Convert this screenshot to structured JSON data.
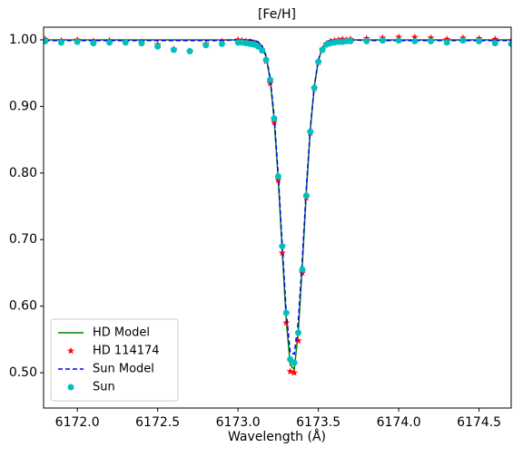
{
  "chart_data": {
    "type": "line",
    "title": "[Fe/H]",
    "x_label": "Wavelength (Å)",
    "x": [
      6171.8,
      6171.9,
      6172.0,
      6172.1,
      6172.2,
      6172.3,
      6172.4,
      6172.5,
      6172.6,
      6172.7,
      6172.8,
      6172.9,
      6173.0,
      6173.025,
      6173.05,
      6173.075,
      6173.1,
      6173.125,
      6173.15,
      6173.175,
      6173.2,
      6173.225,
      6173.25,
      6173.275,
      6173.3,
      6173.325,
      6173.35,
      6173.375,
      6173.4,
      6173.425,
      6173.45,
      6173.475,
      6173.5,
      6173.525,
      6173.55,
      6173.575,
      6173.6,
      6173.625,
      6173.65,
      6173.675,
      6173.7,
      6173.8,
      6173.9,
      6174.0,
      6174.1,
      6174.2,
      6174.3,
      6174.4,
      6174.5,
      6174.6,
      6174.7
    ],
    "series": [
      {
        "name": "HD Model",
        "color": "#008000",
        "linestyle": "solid",
        "values": [
          1.0,
          1.0,
          1.0,
          1.0,
          1.0,
          1.0,
          1.0,
          1.0,
          1.0,
          1.0,
          1.0,
          1.0,
          1.0,
          1.0,
          1.0,
          1.0,
          0.999,
          0.997,
          0.99,
          0.974,
          0.94,
          0.88,
          0.792,
          0.684,
          0.579,
          0.512,
          0.505,
          0.562,
          0.661,
          0.771,
          0.865,
          0.93,
          0.969,
          0.988,
          0.996,
          0.999,
          1.0,
          1.0,
          1.0,
          1.0,
          1.0,
          1.0,
          1.0,
          1.0,
          1.0,
          1.0,
          1.0,
          1.0,
          1.0,
          1.0,
          1.0
        ]
      },
      {
        "name": "HD 114174",
        "color": "#ff0000",
        "marker": "star",
        "values": [
          1.001,
          0.999,
          1.0,
          0.998,
          0.999,
          0.997,
          0.997,
          0.993,
          0.986,
          0.983,
          0.994,
          0.998,
          1.0,
          0.999,
          0.998,
          0.997,
          0.995,
          0.992,
          0.985,
          0.968,
          0.935,
          0.876,
          0.789,
          0.68,
          0.575,
          0.502,
          0.5,
          0.548,
          0.65,
          0.763,
          0.86,
          0.927,
          0.966,
          0.986,
          0.994,
          0.998,
          0.999,
          1.0,
          1.001,
          1.0,
          1.001,
          1.002,
          1.003,
          1.004,
          1.004,
          1.003,
          1.001,
          1.003,
          1.002,
          1.001,
          0.999
        ]
      },
      {
        "name": "Sun Model",
        "color": "#0000ff",
        "linestyle": "dashed",
        "values": [
          0.999,
          0.999,
          0.999,
          0.999,
          0.999,
          0.999,
          0.999,
          0.999,
          0.999,
          0.999,
          0.999,
          0.999,
          1.0,
          1.0,
          1.0,
          1.0,
          0.999,
          0.997,
          0.991,
          0.976,
          0.943,
          0.885,
          0.799,
          0.693,
          0.592,
          0.53,
          0.528,
          0.577,
          0.67,
          0.777,
          0.868,
          0.931,
          0.97,
          0.988,
          0.996,
          0.999,
          1.0,
          1.0,
          1.0,
          1.0,
          1.0,
          0.999,
          0.999,
          0.999,
          0.999,
          0.999,
          0.999,
          0.999,
          0.999,
          0.999,
          0.999
        ]
      },
      {
        "name": "Sun",
        "color": "#00bfbf",
        "marker": "circle",
        "values": [
          0.998,
          0.996,
          0.997,
          0.995,
          0.996,
          0.996,
          0.995,
          0.99,
          0.985,
          0.983,
          0.992,
          0.994,
          0.996,
          0.996,
          0.995,
          0.994,
          0.993,
          0.99,
          0.984,
          0.97,
          0.94,
          0.882,
          0.795,
          0.69,
          0.59,
          0.52,
          0.515,
          0.56,
          0.655,
          0.766,
          0.862,
          0.928,
          0.967,
          0.985,
          0.993,
          0.995,
          0.996,
          0.997,
          0.997,
          0.998,
          0.998,
          0.998,
          0.999,
          0.999,
          0.998,
          0.998,
          0.996,
          0.999,
          0.998,
          0.995,
          0.994
        ]
      }
    ],
    "xlim": [
      6171.79,
      6174.7
    ],
    "ylim": [
      0.447,
      1.019
    ],
    "xticks": [
      {
        "value": 6172.0,
        "label": "6172.0"
      },
      {
        "value": 6172.5,
        "label": "6172.5"
      },
      {
        "value": 6173.0,
        "label": "6173.0"
      },
      {
        "value": 6173.5,
        "label": "6173.5"
      },
      {
        "value": 6174.0,
        "label": "6174.0"
      },
      {
        "value": 6174.5,
        "label": "6174.5"
      }
    ],
    "yticks": [
      {
        "value": 0.5,
        "label": "0.50"
      },
      {
        "value": 0.6,
        "label": "0.60"
      },
      {
        "value": 0.7,
        "label": "0.70"
      },
      {
        "value": 0.8,
        "label": "0.80"
      },
      {
        "value": 0.9,
        "label": "0.90"
      },
      {
        "value": 1.0,
        "label": "1.00"
      }
    ],
    "legend": "lower left"
  }
}
